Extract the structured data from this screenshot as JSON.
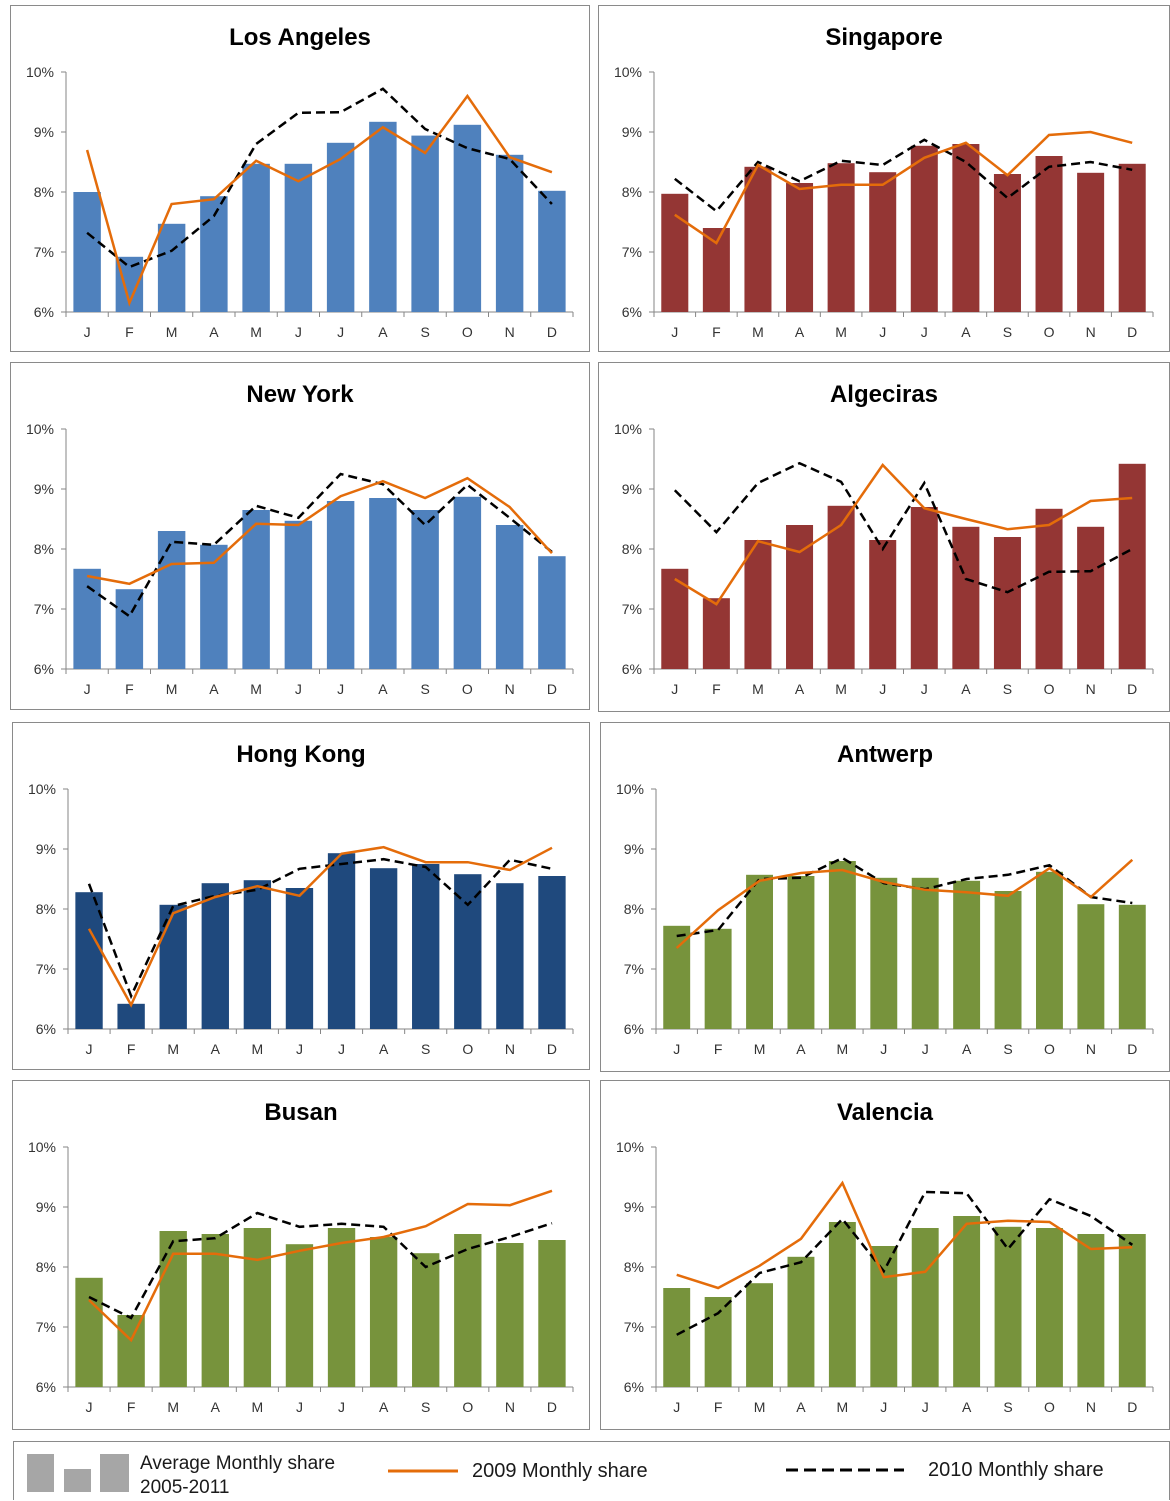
{
  "chart_data": [
    {
      "type": "bar",
      "title": "Los Angeles",
      "bar_color": "#4F81BD",
      "categories": [
        "J",
        "F",
        "M",
        "A",
        "M",
        "J",
        "J",
        "A",
        "S",
        "O",
        "N",
        "D"
      ],
      "ylim": [
        6,
        10
      ],
      "ytick_labels": [
        "6%",
        "7%",
        "8%",
        "9%",
        "10%"
      ],
      "series": [
        {
          "name": "Average Monthly share 2005-2011",
          "kind": "bar",
          "values": [
            8.0,
            6.92,
            7.47,
            7.93,
            8.47,
            8.47,
            8.82,
            9.17,
            8.94,
            9.12,
            8.62,
            8.02
          ]
        },
        {
          "name": "2009 Monthly share",
          "kind": "line",
          "values": [
            8.7,
            6.15,
            7.8,
            7.88,
            8.52,
            8.18,
            8.55,
            9.08,
            8.65,
            9.6,
            8.58,
            8.33
          ]
        },
        {
          "name": "2010 Monthly share",
          "kind": "dashed-line",
          "values": [
            7.32,
            6.75,
            7.02,
            7.6,
            8.8,
            9.32,
            9.33,
            9.72,
            9.05,
            8.73,
            8.55,
            7.8
          ]
        }
      ]
    },
    {
      "type": "bar",
      "title": "Singapore",
      "bar_color": "#943634",
      "categories": [
        "J",
        "F",
        "M",
        "A",
        "M",
        "J",
        "J",
        "A",
        "S",
        "O",
        "N",
        "D"
      ],
      "ylim": [
        6,
        10
      ],
      "ytick_labels": [
        "6%",
        "7%",
        "8%",
        "9%",
        "10%"
      ],
      "series": [
        {
          "name": "Average Monthly share 2005-2011",
          "kind": "bar",
          "values": [
            7.97,
            7.4,
            8.42,
            8.15,
            8.48,
            8.33,
            8.77,
            8.8,
            8.3,
            8.6,
            8.32,
            8.47
          ]
        },
        {
          "name": "2009 Monthly share",
          "kind": "line",
          "values": [
            7.62,
            7.15,
            8.45,
            8.05,
            8.12,
            8.12,
            8.57,
            8.82,
            8.28,
            8.95,
            9.0,
            8.82
          ]
        },
        {
          "name": "2010 Monthly share",
          "kind": "dashed-line",
          "values": [
            8.22,
            7.68,
            8.5,
            8.18,
            8.52,
            8.45,
            8.87,
            8.5,
            7.9,
            8.42,
            8.5,
            8.37
          ]
        }
      ]
    },
    {
      "type": "bar",
      "title": "New York",
      "bar_color": "#4F81BD",
      "categories": [
        "J",
        "F",
        "M",
        "A",
        "M",
        "J",
        "J",
        "A",
        "S",
        "O",
        "N",
        "D"
      ],
      "ylim": [
        6,
        10
      ],
      "ytick_labels": [
        "6%",
        "7%",
        "8%",
        "9%",
        "10%"
      ],
      "series": [
        {
          "name": "Average Monthly share 2005-2011",
          "kind": "bar",
          "values": [
            7.67,
            7.33,
            8.3,
            8.07,
            8.65,
            8.47,
            8.8,
            8.85,
            8.65,
            8.87,
            8.4,
            7.88
          ]
        },
        {
          "name": "2009 Monthly share",
          "kind": "line",
          "values": [
            7.55,
            7.42,
            7.75,
            7.77,
            8.42,
            8.4,
            8.88,
            9.13,
            8.85,
            9.18,
            8.7,
            7.93
          ]
        },
        {
          "name": "2010 Monthly share",
          "kind": "dashed-line",
          "values": [
            7.38,
            6.88,
            8.12,
            8.07,
            8.72,
            8.52,
            9.25,
            9.08,
            8.4,
            9.07,
            8.52,
            7.95
          ]
        }
      ]
    },
    {
      "type": "bar",
      "title": "Algeciras",
      "bar_color": "#943634",
      "categories": [
        "J",
        "F",
        "M",
        "A",
        "M",
        "J",
        "J",
        "A",
        "S",
        "O",
        "N",
        "D"
      ],
      "ylim": [
        6,
        10
      ],
      "ytick_labels": [
        "6%",
        "7%",
        "8%",
        "9%",
        "10%"
      ],
      "series": [
        {
          "name": "Average Monthly share 2005-2011",
          "kind": "bar",
          "values": [
            7.67,
            7.18,
            8.15,
            8.4,
            8.72,
            8.15,
            8.7,
            8.37,
            8.2,
            8.67,
            8.37,
            9.42
          ]
        },
        {
          "name": "2009 Monthly share",
          "kind": "line",
          "values": [
            7.5,
            7.08,
            8.13,
            7.95,
            8.4,
            9.4,
            8.68,
            8.5,
            8.33,
            8.4,
            8.8,
            8.85
          ]
        },
        {
          "name": "2010 Monthly share",
          "kind": "dashed-line",
          "values": [
            8.98,
            8.28,
            9.1,
            9.43,
            9.12,
            8.0,
            9.1,
            7.5,
            7.28,
            7.62,
            7.63,
            8.0
          ]
        }
      ]
    },
    {
      "type": "bar",
      "title": "Hong Kong",
      "bar_color": "#1F497D",
      "categories": [
        "J",
        "F",
        "M",
        "A",
        "M",
        "J",
        "J",
        "A",
        "S",
        "O",
        "N",
        "D"
      ],
      "ylim": [
        6,
        10
      ],
      "ytick_labels": [
        "6%",
        "7%",
        "8%",
        "9%",
        "10%"
      ],
      "series": [
        {
          "name": "Average Monthly share 2005-2011",
          "kind": "bar",
          "values": [
            8.28,
            6.42,
            8.07,
            8.43,
            8.48,
            8.35,
            8.93,
            8.68,
            8.75,
            8.58,
            8.43,
            8.55
          ]
        },
        {
          "name": "2009 Monthly share",
          "kind": "line",
          "values": [
            7.67,
            6.4,
            7.93,
            8.2,
            8.38,
            8.22,
            8.92,
            9.03,
            8.78,
            8.78,
            8.65,
            9.02
          ]
        },
        {
          "name": "2010 Monthly share",
          "kind": "dashed-line",
          "values": [
            8.42,
            6.55,
            8.05,
            8.22,
            8.32,
            8.67,
            8.75,
            8.83,
            8.7,
            8.07,
            8.82,
            8.67
          ]
        }
      ]
    },
    {
      "type": "bar",
      "title": "Antwerp",
      "bar_color": "#77933C",
      "categories": [
        "J",
        "F",
        "M",
        "A",
        "M",
        "J",
        "J",
        "A",
        "S",
        "O",
        "N",
        "D"
      ],
      "ylim": [
        6,
        10
      ],
      "ytick_labels": [
        "6%",
        "7%",
        "8%",
        "9%",
        "10%"
      ],
      "series": [
        {
          "name": "Average Monthly share 2005-2011",
          "kind": "bar",
          "values": [
            7.72,
            7.67,
            8.57,
            8.55,
            8.8,
            8.52,
            8.52,
            8.47,
            8.3,
            8.62,
            8.08,
            8.07
          ]
        },
        {
          "name": "2009 Monthly share",
          "kind": "line",
          "values": [
            7.35,
            7.98,
            8.47,
            8.6,
            8.65,
            8.45,
            8.32,
            8.28,
            8.22,
            8.68,
            8.2,
            8.82
          ]
        },
        {
          "name": "2010 Monthly share",
          "kind": "dashed-line",
          "values": [
            7.55,
            7.65,
            8.5,
            8.52,
            8.85,
            8.43,
            8.33,
            8.5,
            8.57,
            8.73,
            8.2,
            8.1
          ]
        }
      ]
    },
    {
      "type": "bar",
      "title": "Busan",
      "bar_color": "#77933C",
      "categories": [
        "J",
        "F",
        "M",
        "A",
        "M",
        "J",
        "J",
        "A",
        "S",
        "O",
        "N",
        "D"
      ],
      "ylim": [
        6,
        10
      ],
      "ytick_labels": [
        "6%",
        "7%",
        "8%",
        "9%",
        "10%"
      ],
      "series": [
        {
          "name": "Average Monthly share 2005-2011",
          "kind": "bar",
          "values": [
            7.82,
            7.2,
            8.6,
            8.55,
            8.65,
            8.38,
            8.65,
            8.5,
            8.23,
            8.55,
            8.4,
            8.45
          ]
        },
        {
          "name": "2009 Monthly share",
          "kind": "line",
          "values": [
            7.45,
            6.78,
            8.22,
            8.22,
            8.12,
            8.27,
            8.4,
            8.5,
            8.68,
            9.05,
            9.03,
            9.27
          ]
        },
        {
          "name": "2010 Monthly share",
          "kind": "dashed-line",
          "values": [
            7.5,
            7.15,
            8.43,
            8.48,
            8.9,
            8.67,
            8.72,
            8.67,
            8.0,
            8.3,
            8.5,
            8.73
          ]
        }
      ]
    },
    {
      "type": "bar",
      "title": "Valencia",
      "bar_color": "#77933C",
      "categories": [
        "J",
        "F",
        "M",
        "A",
        "M",
        "J",
        "J",
        "A",
        "S",
        "O",
        "N",
        "D"
      ],
      "ylim": [
        6,
        10
      ],
      "ytick_labels": [
        "6%",
        "7%",
        "8%",
        "9%",
        "10%"
      ],
      "series": [
        {
          "name": "Average Monthly share 2005-2011",
          "kind": "bar",
          "values": [
            7.65,
            7.5,
            7.73,
            8.17,
            8.75,
            8.35,
            8.65,
            8.85,
            8.67,
            8.65,
            8.55,
            8.55
          ]
        },
        {
          "name": "2009 Monthly share",
          "kind": "line",
          "values": [
            7.87,
            7.65,
            8.02,
            8.47,
            9.4,
            7.83,
            7.92,
            8.72,
            8.77,
            8.75,
            8.3,
            8.33
          ]
        },
        {
          "name": "2010 Monthly share",
          "kind": "dashed-line",
          "values": [
            6.87,
            7.23,
            7.9,
            8.08,
            8.8,
            7.93,
            9.25,
            9.23,
            8.3,
            9.13,
            8.85,
            8.37
          ]
        }
      ]
    }
  ],
  "legend": {
    "bar_label_line1": "Average Monthly share",
    "bar_label_line2": "2005-2011",
    "line_2009_label": "2009 Monthly share",
    "line_2010_label": "2010 Monthly share",
    "bar_swatch_color": "#A6A6A6",
    "line_2009_color": "#E46C0A",
    "line_2010_color": "#000000"
  }
}
